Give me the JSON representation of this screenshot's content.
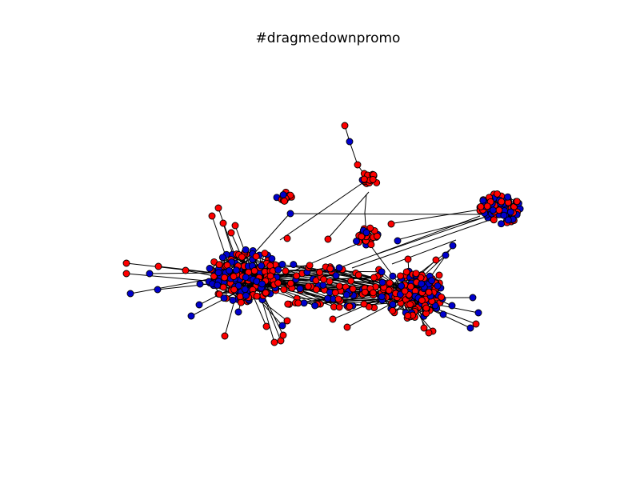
{
  "title": "#dragmedownpromo",
  "colors": {
    "red_nodes": "#ff0000",
    "blue_nodes": "#0000cc",
    "edge": "#000000",
    "node_outline": "#000000",
    "background": "#ffffff"
  },
  "chart_data": {
    "type": "network",
    "title": "#dragmedownpromo",
    "node_categories": [
      "red",
      "blue"
    ],
    "clusters": [
      {
        "label": "left-dense-cluster",
        "shape": "ellipse"
      },
      {
        "label": "right-dense-cluster",
        "shape": "ellipse"
      },
      {
        "label": "upper-right-cluster",
        "shape": "ellipse"
      },
      {
        "label": "top-center-small-cluster",
        "shape": "cluster"
      },
      {
        "label": "upper-left-small-cluster",
        "shape": "cluster"
      },
      {
        "label": "center-small-cluster",
        "shape": "cluster"
      }
    ],
    "legend": "none",
    "axes": "none"
  }
}
